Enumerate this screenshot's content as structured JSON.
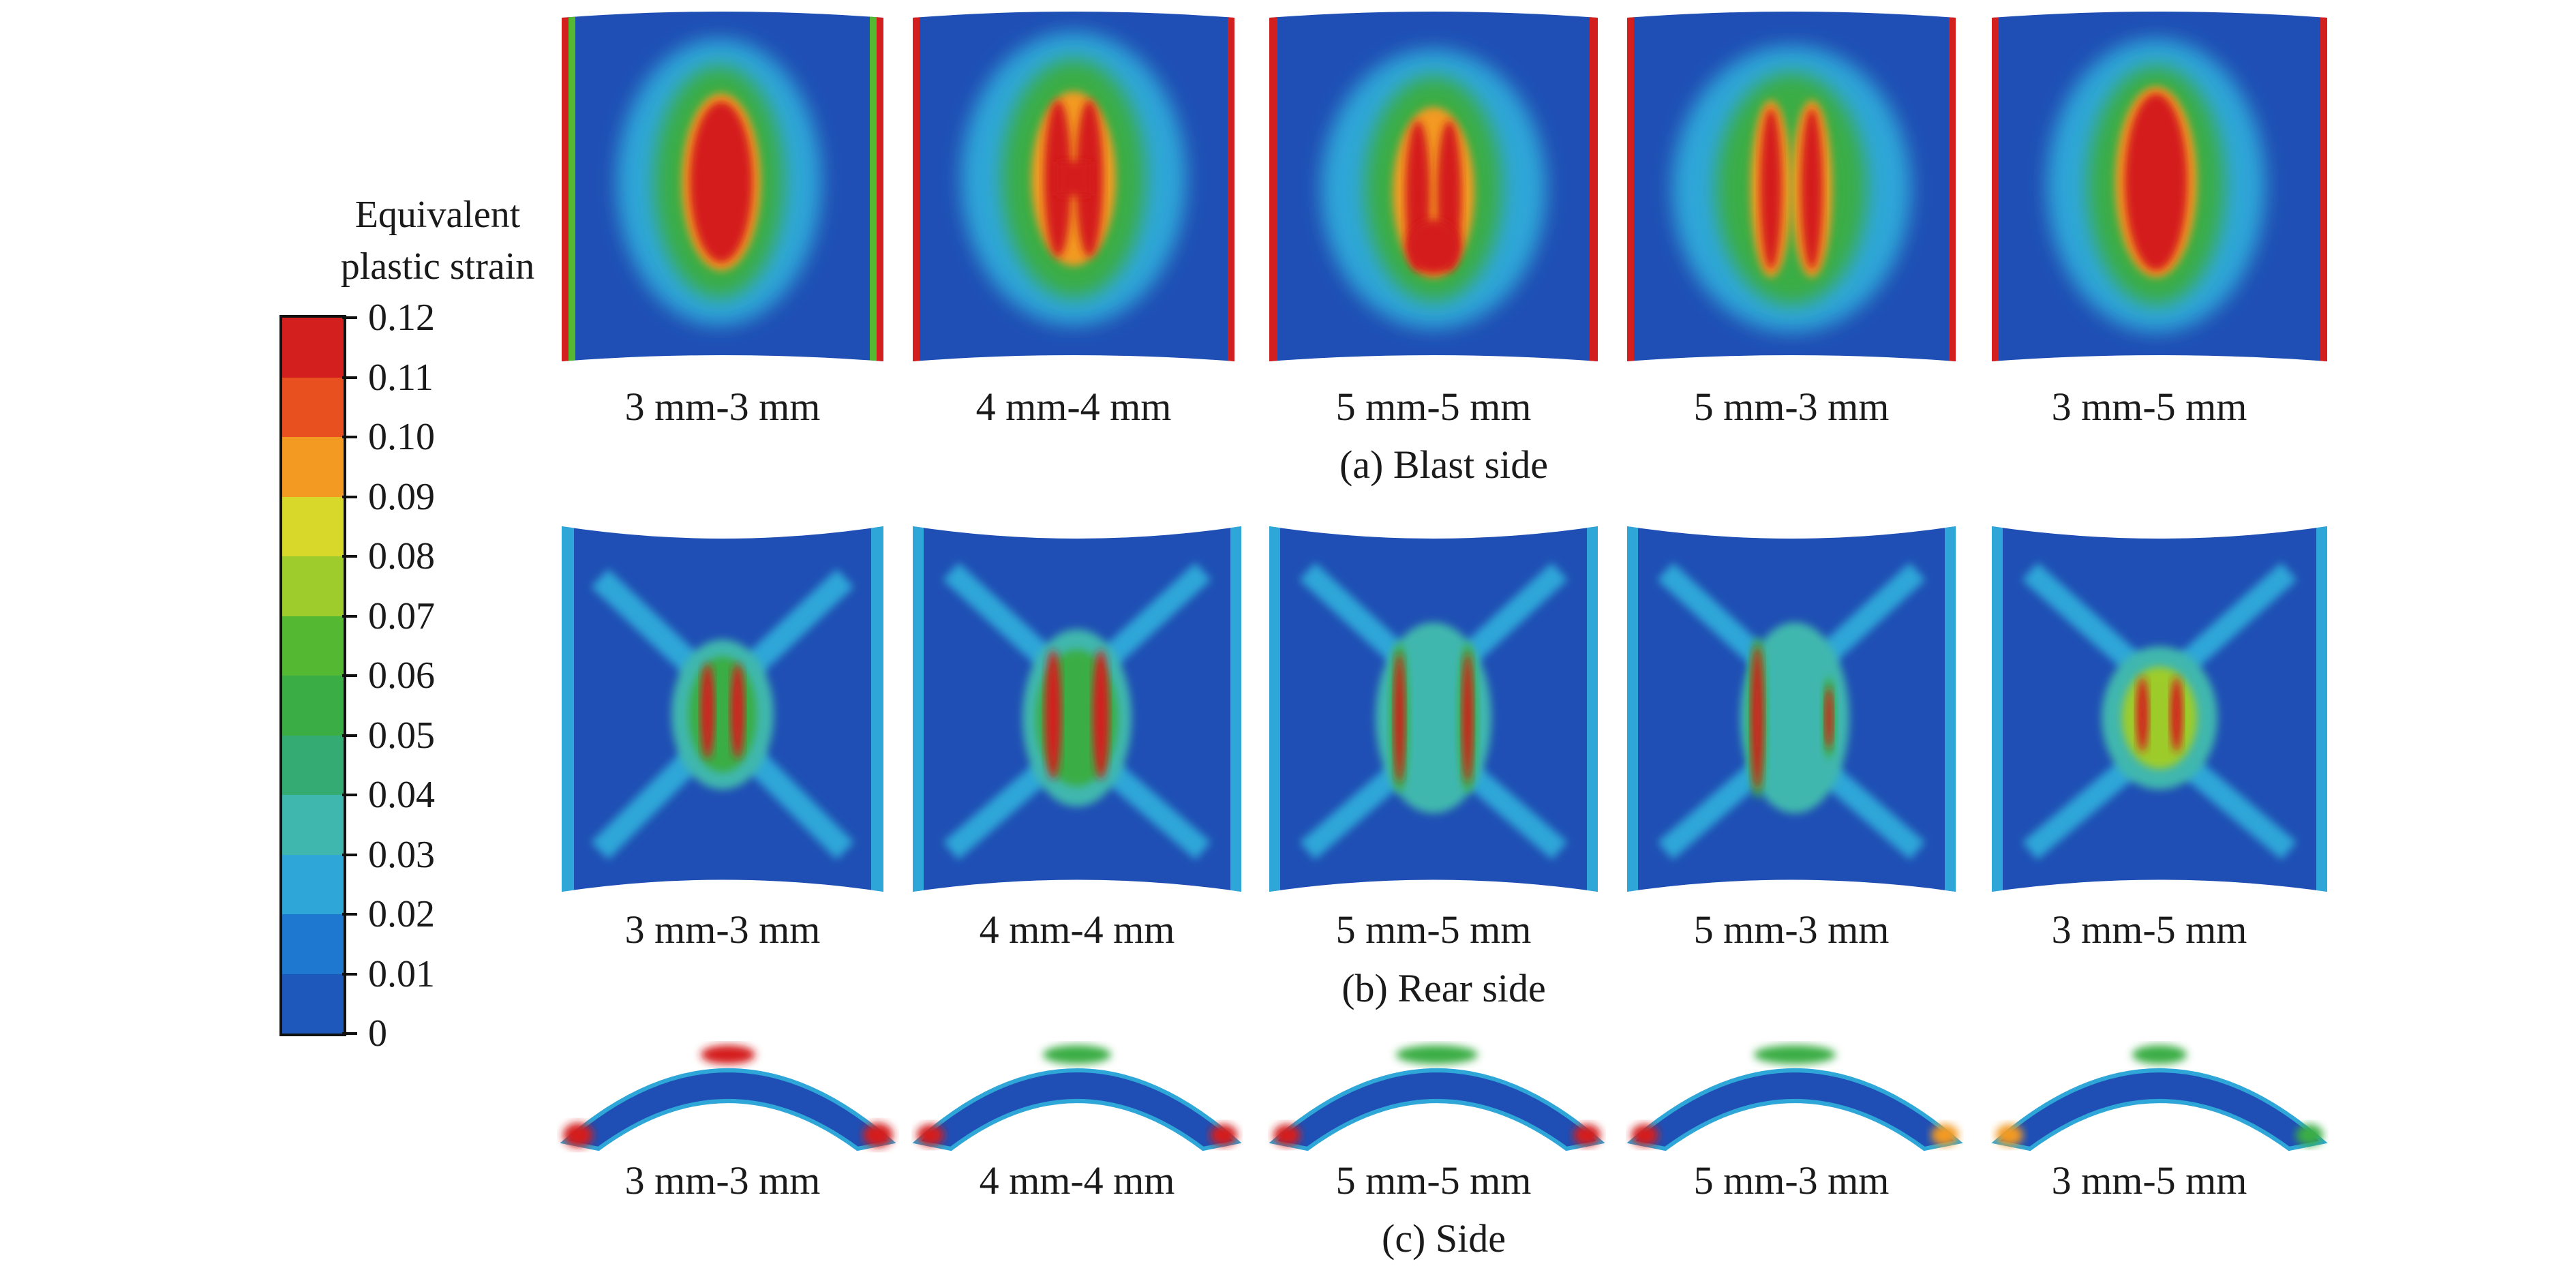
{
  "legend": {
    "title_line1": "Equivalent",
    "title_line2": "plastic strain",
    "ticks": [
      "0.12",
      "0.11",
      "0.10",
      "0.09",
      "0.08",
      "0.07",
      "0.06",
      "0.05",
      "0.04",
      "0.03",
      "0.02",
      "0.01",
      "0"
    ],
    "bands": [
      "#d41f1f",
      "#e8501f",
      "#f29a22",
      "#d8d82a",
      "#9dcc2c",
      "#55b832",
      "#3aad45",
      "#34ab72",
      "#40b7ae",
      "#2fa6d8",
      "#1f78d0",
      "#1f58bb"
    ],
    "background_colors": {
      "low": "#1f4fb4",
      "mid": "#2fa6d8",
      "high": "#d41f1f"
    }
  },
  "rows": [
    {
      "caption": "(a) Blast side",
      "panels": [
        {
          "label": "3 mm-3 mm"
        },
        {
          "label": "4 mm-4 mm"
        },
        {
          "label": "5 mm-5 mm"
        },
        {
          "label": "5 mm-3 mm"
        },
        {
          "label": "3 mm-5 mm"
        }
      ]
    },
    {
      "caption": "(b) Rear side",
      "panels": [
        {
          "label": "3 mm-3 mm"
        },
        {
          "label": "4 mm-4 mm"
        },
        {
          "label": "5 mm-5 mm"
        },
        {
          "label": "5 mm-3 mm"
        },
        {
          "label": "3 mm-5 mm"
        }
      ]
    },
    {
      "caption": "(c) Side",
      "panels": [
        {
          "label": "3 mm-3 mm"
        },
        {
          "label": "4 mm-4 mm"
        },
        {
          "label": "5 mm-5 mm"
        },
        {
          "label": "5 mm-3 mm"
        },
        {
          "label": "3 mm-5 mm"
        }
      ]
    }
  ]
}
